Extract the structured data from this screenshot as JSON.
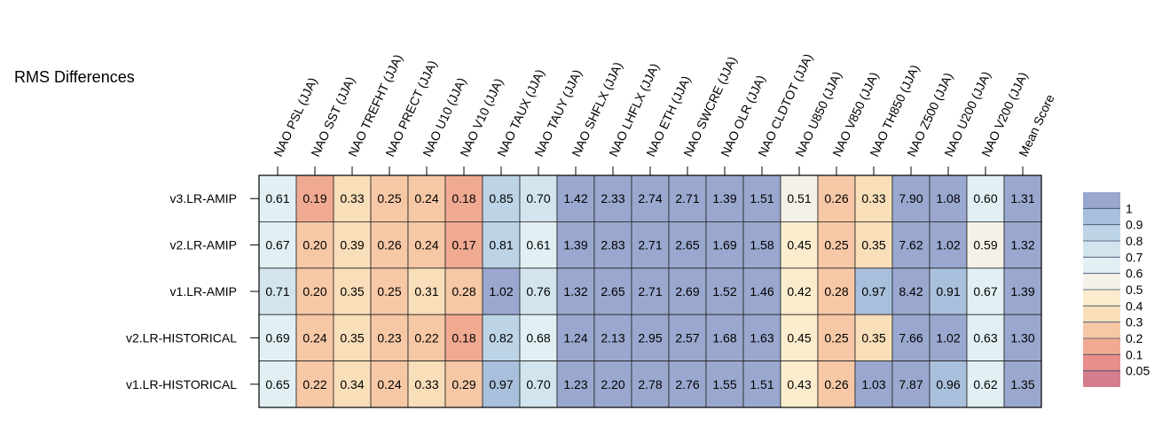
{
  "chart_data": {
    "type": "heatmap",
    "title": "RMS Differences",
    "columns": [
      "NAO PSL (JJA)",
      "NAO SST (JJA)",
      "NAO TREFHT (JJA)",
      "NAO PRECT (JJA)",
      "NAO U10 (JJA)",
      "NAO V10 (JJA)",
      "NAO TAUX (JJA)",
      "NAO TAUY (JJA)",
      "NAO SHFLX (JJA)",
      "NAO LHFLX (JJA)",
      "NAO ETH (JJA)",
      "NAO SWCRE (JJA)",
      "NAO OLR (JJA)",
      "NAO CLDTOT (JJA)",
      "NAO U850 (JJA)",
      "NAO V850 (JJA)",
      "NAO TH850 (JJA)",
      "NAO Z500 (JJA)",
      "NAO U200 (JJA)",
      "NAO V200 (JJA)",
      "Mean Score"
    ],
    "rows": [
      "v3.LR-AMIP",
      "v2.LR-AMIP",
      "v1.LR-AMIP",
      "v2.LR-HISTORICAL",
      "v1.LR-HISTORICAL"
    ],
    "values": [
      [
        0.61,
        0.19,
        0.33,
        0.25,
        0.24,
        0.18,
        0.85,
        0.7,
        1.42,
        2.33,
        2.74,
        2.71,
        1.39,
        1.51,
        0.51,
        0.26,
        0.33,
        7.9,
        1.08,
        0.6,
        1.31
      ],
      [
        0.67,
        0.2,
        0.39,
        0.26,
        0.24,
        0.17,
        0.81,
        0.61,
        1.39,
        2.83,
        2.71,
        2.65,
        1.69,
        1.58,
        0.45,
        0.25,
        0.35,
        7.62,
        1.02,
        0.59,
        1.32
      ],
      [
        0.71,
        0.2,
        0.35,
        0.25,
        0.31,
        0.28,
        1.02,
        0.76,
        1.32,
        2.65,
        2.71,
        2.69,
        1.52,
        1.46,
        0.42,
        0.28,
        0.97,
        8.42,
        0.91,
        0.67,
        1.39
      ],
      [
        0.69,
        0.24,
        0.35,
        0.23,
        0.22,
        0.18,
        0.82,
        0.68,
        1.24,
        2.13,
        2.95,
        2.57,
        1.68,
        1.63,
        0.45,
        0.25,
        0.35,
        7.66,
        1.02,
        0.63,
        1.3
      ],
      [
        0.65,
        0.22,
        0.34,
        0.24,
        0.33,
        0.29,
        0.97,
        0.7,
        1.23,
        2.2,
        2.78,
        2.76,
        1.55,
        1.51,
        0.43,
        0.26,
        1.03,
        7.87,
        0.96,
        0.62,
        1.35
      ]
    ],
    "colorbar": {
      "tick_labels": [
        "1",
        "0.9",
        "0.8",
        "0.7",
        "0.6",
        "0.5",
        "0.4",
        "0.3",
        "0.2",
        "0.1",
        "0.05"
      ],
      "bins": [
        {
          "min": 1.0,
          "color": "#9aa8cf"
        },
        {
          "min": 0.9,
          "color": "#a9c0dc"
        },
        {
          "min": 0.8,
          "color": "#bcd4e6"
        },
        {
          "min": 0.7,
          "color": "#d2e5ee"
        },
        {
          "min": 0.6,
          "color": "#e2f0f4"
        },
        {
          "min": 0.5,
          "color": "#f4f2e8"
        },
        {
          "min": 0.4,
          "color": "#faeccd"
        },
        {
          "min": 0.3,
          "color": "#f8deb9"
        },
        {
          "min": 0.2,
          "color": "#f6c8a6"
        },
        {
          "min": 0.1,
          "color": "#f1aa92"
        },
        {
          "min": 0.05,
          "color": "#e88e8a"
        },
        {
          "min": 0.0,
          "color": "#d47d8b"
        }
      ]
    },
    "grid": true,
    "legend_position": "right"
  }
}
